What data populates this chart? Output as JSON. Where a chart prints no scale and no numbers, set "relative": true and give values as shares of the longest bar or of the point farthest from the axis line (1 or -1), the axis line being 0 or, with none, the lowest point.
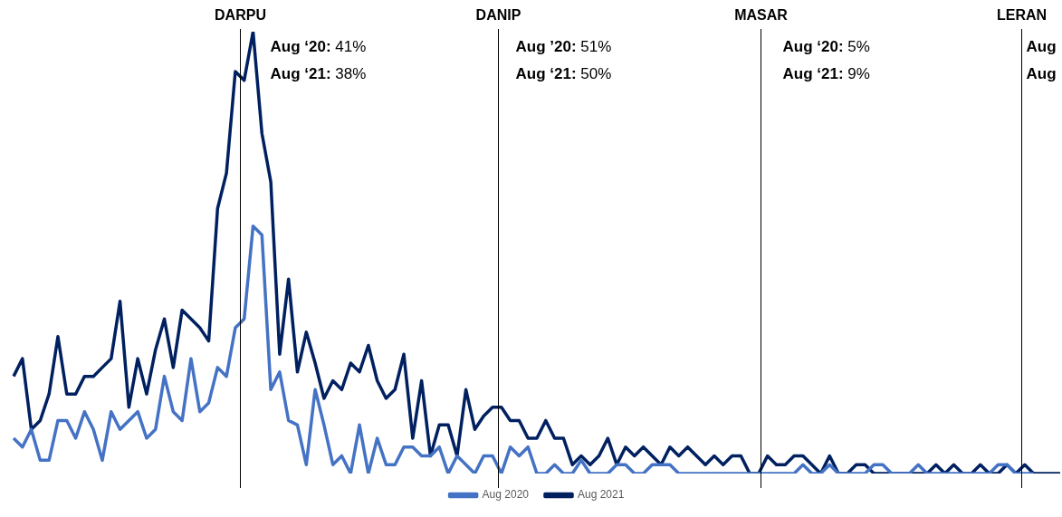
{
  "chart_data": {
    "type": "line",
    "relative": true,
    "tick_labels": false,
    "legend": "bottom",
    "categories": [
      null,
      null,
      null,
      null,
      null,
      null,
      null,
      null,
      null,
      null,
      null,
      null,
      null,
      null,
      null,
      null,
      null,
      null,
      null,
      null,
      null,
      null,
      null,
      null,
      null,
      null,
      null,
      null,
      null,
      null,
      null,
      null,
      null,
      null,
      null,
      null,
      null,
      null,
      null,
      null,
      null,
      null,
      null,
      null,
      null,
      null,
      null,
      null,
      null,
      null,
      null,
      null,
      null,
      null,
      null,
      null,
      null,
      null,
      null,
      null,
      null,
      null,
      null,
      null,
      null,
      null,
      null,
      null,
      null,
      null,
      null,
      null,
      null,
      null,
      null,
      null,
      null,
      null,
      null,
      null,
      null,
      null,
      null,
      null,
      null,
      null,
      null,
      null,
      null,
      null,
      null,
      null,
      null,
      null,
      null,
      null,
      null,
      null,
      null,
      null,
      null,
      null,
      null,
      null,
      null,
      null,
      null,
      null,
      null,
      null,
      null,
      null,
      null,
      null,
      null,
      null,
      null,
      null,
      null
    ],
    "series": [
      {
        "name": "Aug 2020",
        "color": "#4472c4",
        "values": [
          0.08,
          0.06,
          0.1,
          0.03,
          0.03,
          0.12,
          0.12,
          0.08,
          0.14,
          0.1,
          0.03,
          0.14,
          0.1,
          0.12,
          0.14,
          0.08,
          0.1,
          0.22,
          0.14,
          0.12,
          0.26,
          0.14,
          0.16,
          0.24,
          0.22,
          0.33,
          0.35,
          0.56,
          0.54,
          0.19,
          0.23,
          0.12,
          0.11,
          0.02,
          0.19,
          0.11,
          0.02,
          0.04,
          0,
          0.11,
          0,
          0.08,
          0.02,
          0.02,
          0.06,
          0.06,
          0.04,
          0.04,
          0.06,
          0,
          0.04,
          0.02,
          0,
          0.04,
          0.04,
          0,
          0.06,
          0.04,
          0.06,
          0,
          0,
          0.02,
          0,
          0,
          0.03,
          0,
          0,
          0,
          0.02,
          0.02,
          0,
          0,
          0.02,
          0.02,
          0.02,
          0,
          0,
          0,
          0,
          0,
          0,
          0,
          0,
          0,
          0,
          0,
          0,
          0,
          0,
          0.02,
          0,
          0,
          0.02,
          0,
          0,
          0,
          0,
          0.02,
          0.02,
          0,
          0,
          0,
          0.02,
          0,
          0,
          0,
          0,
          0,
          0,
          0,
          0,
          0.02,
          0.02,
          0,
          0,
          0,
          null,
          null,
          null
        ]
      },
      {
        "name": "Aug 2021",
        "color": "#002060",
        "values": [
          0.22,
          0.26,
          0.1,
          0.12,
          0.18,
          0.31,
          0.18,
          0.18,
          0.22,
          0.22,
          0.24,
          0.26,
          0.39,
          0.15,
          0.26,
          0.18,
          0.28,
          0.35,
          0.24,
          0.37,
          0.35,
          0.33,
          0.3,
          0.6,
          0.68,
          0.91,
          0.89,
          1,
          0.77,
          0.66,
          0.27,
          0.44,
          0.23,
          0.32,
          0.25,
          0.17,
          0.21,
          0.19,
          0.25,
          0.23,
          0.29,
          0.21,
          0.17,
          0.19,
          0.27,
          0.08,
          0.21,
          0.04,
          0.11,
          0.11,
          0.04,
          0.19,
          0.1,
          0.13,
          0.15,
          0.15,
          0.12,
          0.12,
          0.08,
          0.08,
          0.12,
          0.08,
          0.08,
          0.02,
          0.04,
          0.02,
          0.04,
          0.08,
          0.02,
          0.06,
          0.04,
          0.06,
          0.04,
          0.02,
          0.06,
          0.04,
          0.06,
          0.04,
          0.02,
          0.04,
          0.02,
          0.04,
          0.04,
          0,
          0,
          0.04,
          0.02,
          0.02,
          0.04,
          0.04,
          0.02,
          0,
          0.04,
          0,
          0,
          0.02,
          0.02,
          0,
          0,
          0,
          0,
          0,
          0,
          0,
          0.02,
          0,
          0.02,
          0,
          0,
          0.02,
          0,
          0,
          0.02,
          0,
          0.02,
          0,
          0,
          0,
          0
        ]
      }
    ],
    "annotations": [
      "DARPU",
      "Aug ‘20: 41%",
      "Aug ‘21: 38%",
      "DANIP",
      "Aug ’20: 51%",
      "Aug ‘21: 50%",
      "MASAR",
      "Aug ‘20: 5%",
      "Aug ‘21: 9%",
      "LERAN",
      "Aug",
      "Aug"
    ]
  }
}
